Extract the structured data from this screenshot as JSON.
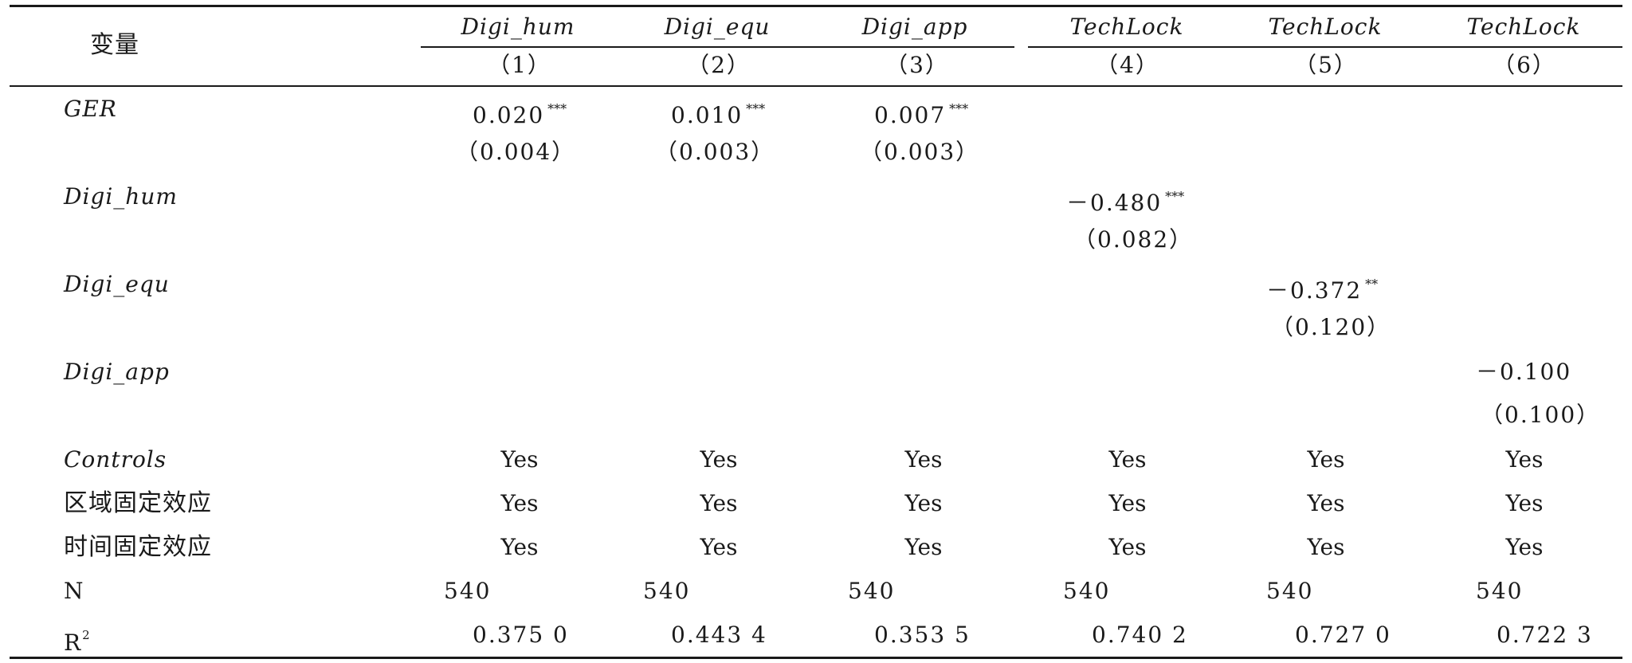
{
  "header": {
    "variable_label": "变量",
    "dep_vars": [
      "Digi_hum",
      "Digi_equ",
      "Digi_app",
      "TechLock",
      "TechLock",
      "TechLock"
    ],
    "col_numbers": [
      "（1）",
      "（2）",
      "（3）",
      "（4）",
      "（5）",
      "（6）"
    ]
  },
  "rows": {
    "ger": {
      "label": "GER",
      "coefs": [
        "0.020",
        "0.010",
        "0.007"
      ],
      "stars": [
        "***",
        "***",
        "***"
      ],
      "ses": [
        "（0.004）",
        "（0.003）",
        "（0.003）"
      ]
    },
    "digi_hum": {
      "label": "Digi_hum",
      "coef": "－0.480",
      "stars": "***",
      "se": "（0.082）"
    },
    "digi_equ": {
      "label": "Digi_equ",
      "coef": "－0.372",
      "stars": "**",
      "se": "（0.120）"
    },
    "digi_app": {
      "label": "Digi_app",
      "coef": "－0.100",
      "se": "（0.100）"
    },
    "controls": {
      "label": "Controls",
      "values": [
        "Yes",
        "Yes",
        "Yes",
        "Yes",
        "Yes",
        "Yes"
      ]
    },
    "region_fe": {
      "label": "区域固定效应",
      "values": [
        "Yes",
        "Yes",
        "Yes",
        "Yes",
        "Yes",
        "Yes"
      ]
    },
    "time_fe": {
      "label": "时间固定效应",
      "values": [
        "Yes",
        "Yes",
        "Yes",
        "Yes",
        "Yes",
        "Yes"
      ]
    },
    "n": {
      "label": "N",
      "values": [
        "540",
        "540",
        "540",
        "540",
        "540",
        "540"
      ]
    },
    "r2": {
      "label": "R",
      "label_sup": "2",
      "values": [
        "0.375 0",
        "0.443 4",
        "0.353 5",
        "0.740 2",
        "0.727 0",
        "0.722 3"
      ]
    }
  }
}
